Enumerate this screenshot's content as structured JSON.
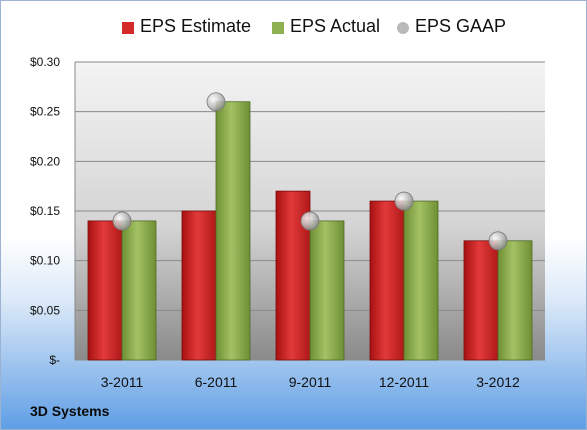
{
  "legend": {
    "estimate": "EPS Estimate",
    "actual": "EPS Actual",
    "gaap": "EPS GAAP"
  },
  "brand": "3D Systems",
  "colors": {
    "estimate": "#d42a2a",
    "actual": "#8fb050",
    "gaap": "#b9b9b9"
  },
  "chart_data": {
    "type": "bar",
    "categories": [
      "3-2011",
      "6-2011",
      "9-2011",
      "12-2011",
      "3-2012"
    ],
    "series": [
      {
        "name": "EPS Estimate",
        "type": "bar",
        "values": [
          0.14,
          0.15,
          0.17,
          0.16,
          0.12
        ]
      },
      {
        "name": "EPS Actual",
        "type": "bar",
        "values": [
          0.14,
          0.26,
          0.14,
          0.16,
          0.12
        ]
      },
      {
        "name": "EPS GAAP",
        "type": "scatter",
        "values": [
          0.14,
          0.26,
          0.14,
          0.16,
          0.12
        ]
      }
    ],
    "ylim": [
      0,
      0.3
    ],
    "yticks": [
      0,
      0.05,
      0.1,
      0.15,
      0.2,
      0.25,
      0.3
    ],
    "ytick_labels": [
      "$-",
      "$0.05",
      "$0.10",
      "$0.15",
      "$0.20",
      "$0.25",
      "$0.30"
    ],
    "grid": true,
    "legend_position": "top"
  }
}
